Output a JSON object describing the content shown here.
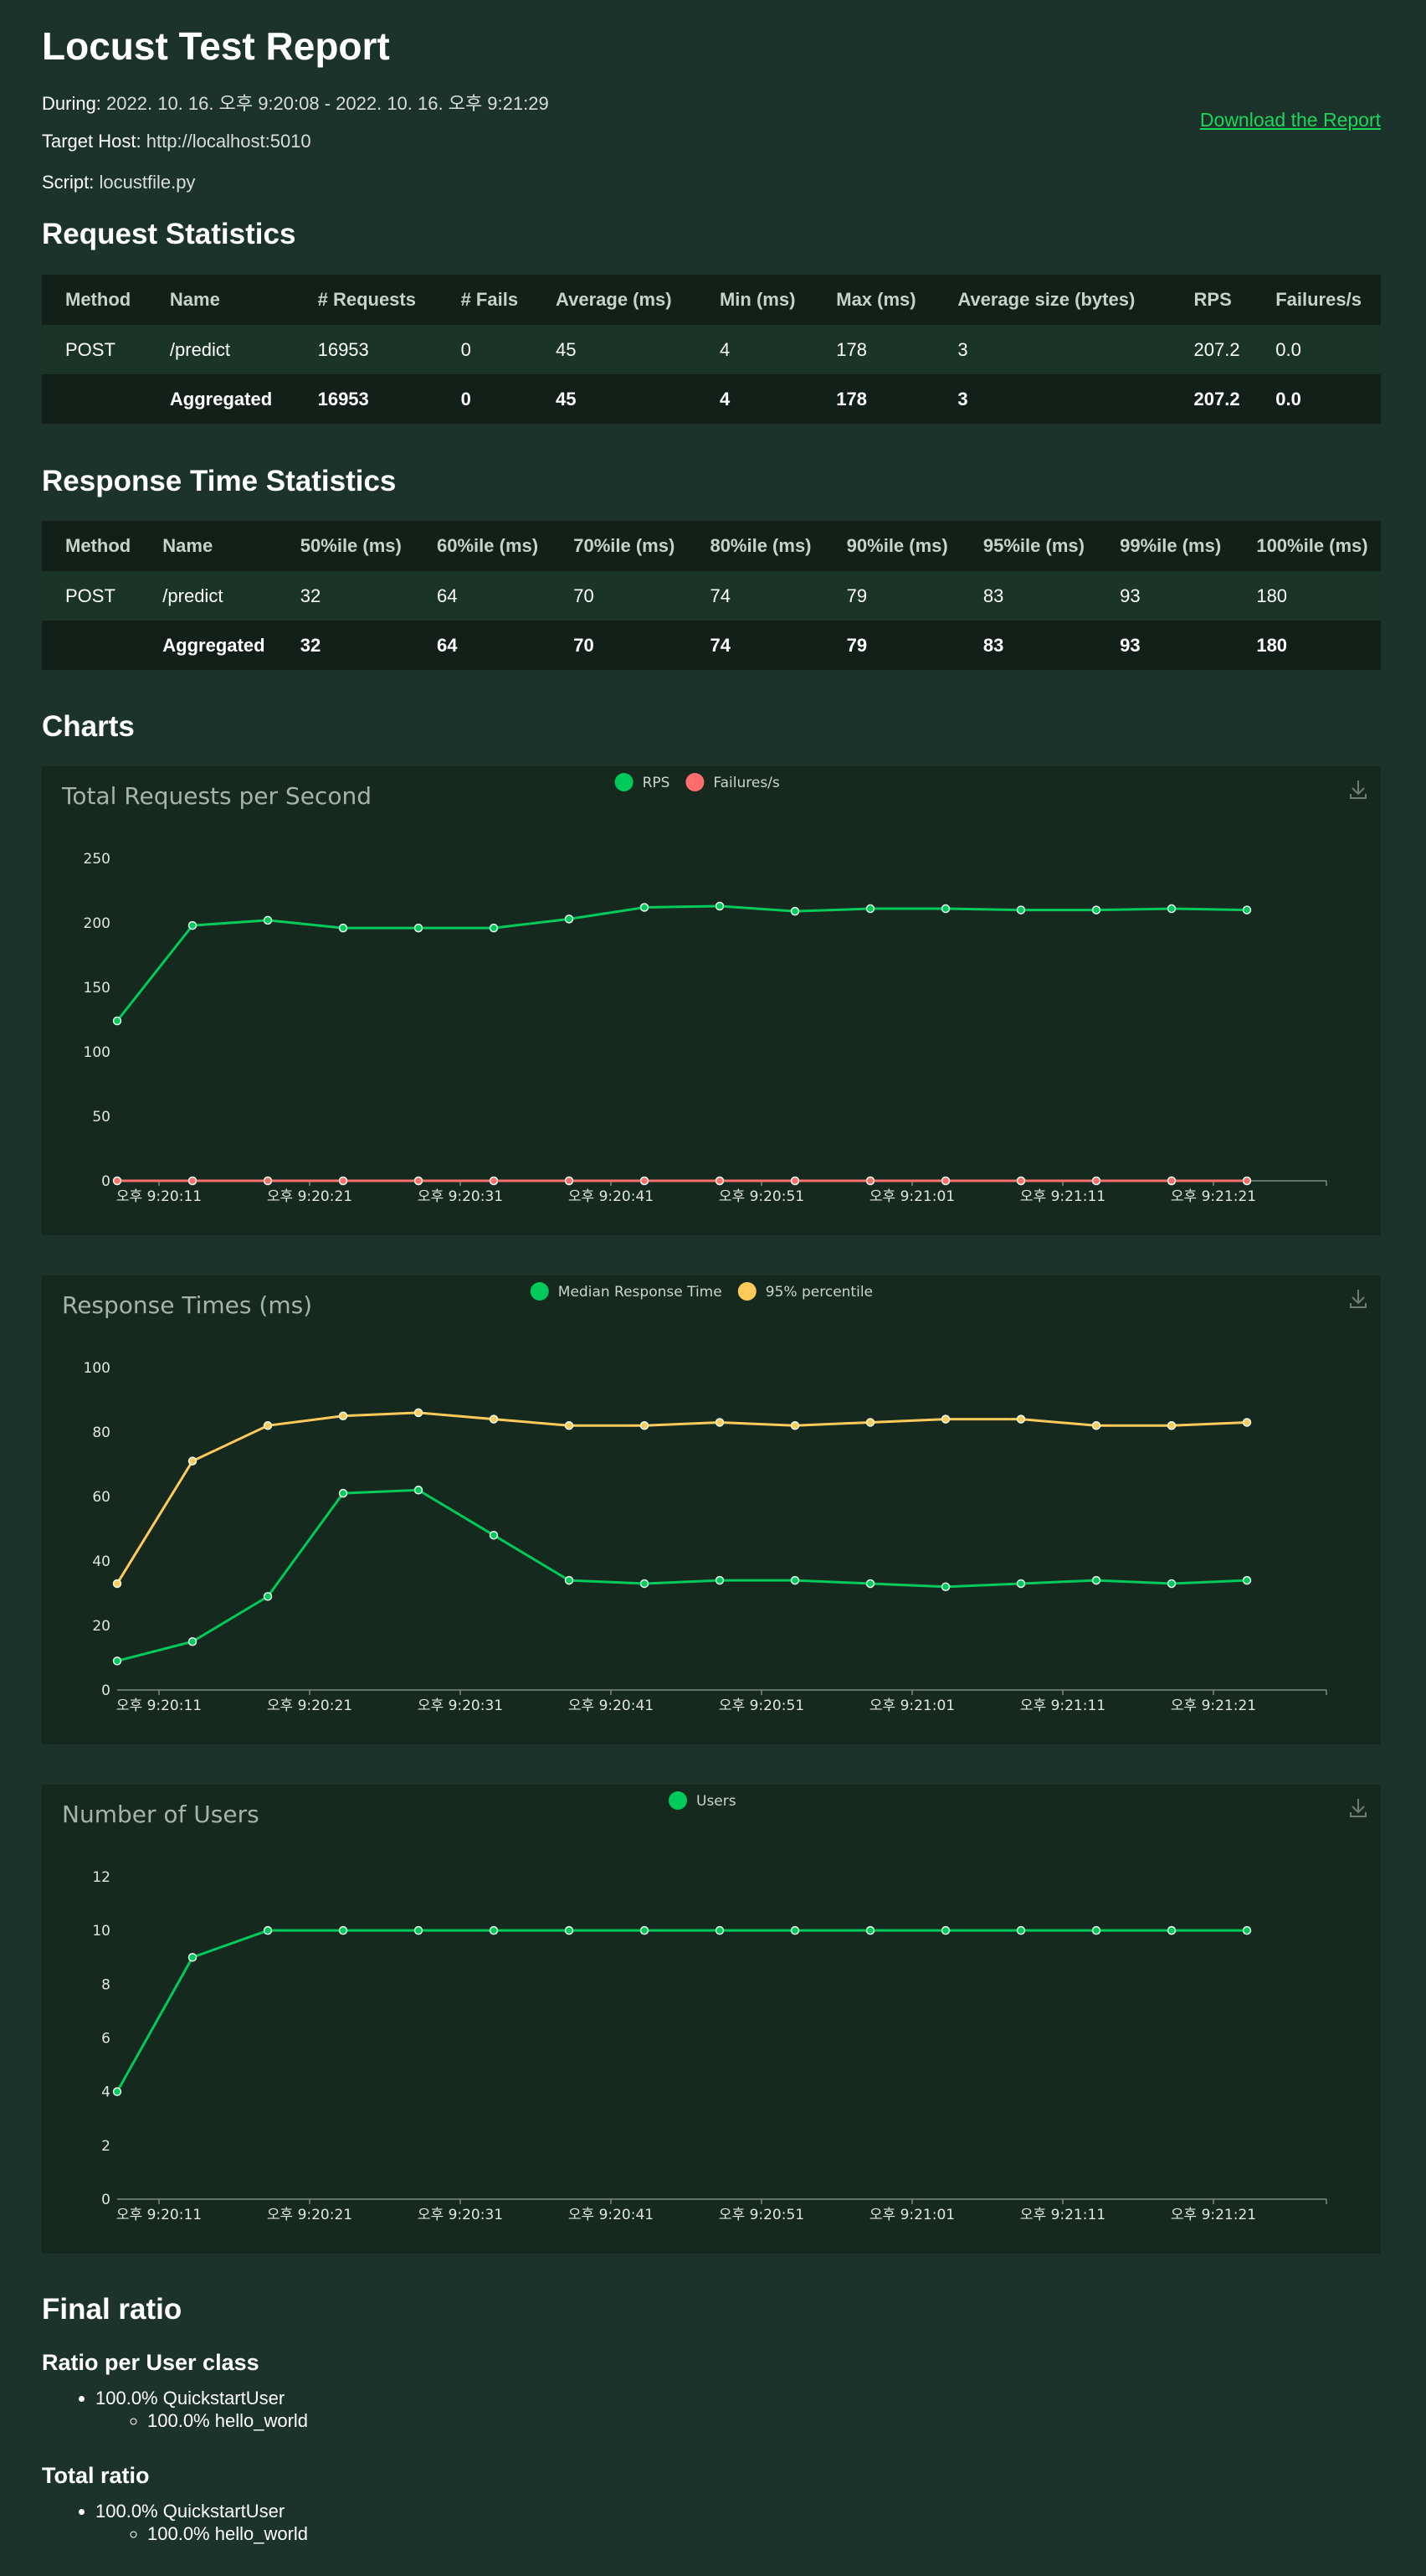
{
  "title": "Locust Test Report",
  "during": {
    "label": "During:",
    "value": "2022. 10. 16. 오후 9:20:08 - 2022. 10. 16. 오후 9:21:29"
  },
  "target_host": {
    "label": "Target Host:",
    "value": "http://localhost:5010"
  },
  "script": {
    "label": "Script:",
    "value": "locustfile.py"
  },
  "download_label": "Download the Report",
  "request_stats": {
    "heading": "Request Statistics",
    "columns": [
      "Method",
      "Name",
      "# Requests",
      "# Fails",
      "Average (ms)",
      "Min (ms)",
      "Max (ms)",
      "Average size (bytes)",
      "RPS",
      "Failures/s"
    ],
    "rows": [
      [
        "POST",
        "/predict",
        "16953",
        "0",
        "45",
        "4",
        "178",
        "3",
        "207.2",
        "0.0"
      ]
    ],
    "aggregated": [
      "",
      "Aggregated",
      "16953",
      "0",
      "45",
      "4",
      "178",
      "3",
      "207.2",
      "0.0"
    ]
  },
  "response_stats": {
    "heading": "Response Time Statistics",
    "columns": [
      "Method",
      "Name",
      "50%ile (ms)",
      "60%ile (ms)",
      "70%ile (ms)",
      "80%ile (ms)",
      "90%ile (ms)",
      "95%ile (ms)",
      "99%ile (ms)",
      "100%ile (ms)"
    ],
    "rows": [
      [
        "POST",
        "/predict",
        "32",
        "64",
        "70",
        "74",
        "79",
        "83",
        "93",
        "180"
      ]
    ],
    "aggregated": [
      "",
      "Aggregated",
      "32",
      "64",
      "70",
      "74",
      "79",
      "83",
      "93",
      "180"
    ]
  },
  "charts_heading": "Charts",
  "colors": {
    "green": "#00ca5a",
    "red": "#ff6d6d",
    "yellow": "#ffca5a",
    "axis": "#7d8a84"
  },
  "chart_data": [
    {
      "type": "line",
      "title": "Total Requests per Second",
      "x_tick_labels": [
        "오후 9:20:11",
        "오후 9:20:21",
        "오후 9:20:31",
        "오후 9:20:41",
        "오후 9:20:51",
        "오후 9:21:01",
        "오후 9:21:11",
        "오후 9:21:21"
      ],
      "y_ticks": [
        0,
        50,
        100,
        150,
        200,
        250
      ],
      "ylim": [
        0,
        250
      ],
      "series": [
        {
          "name": "RPS",
          "color": "#00ca5a",
          "values": [
            124,
            198,
            202,
            196,
            196,
            196,
            203,
            212,
            213,
            209,
            211,
            211,
            210,
            210,
            211,
            210
          ]
        },
        {
          "name": "Failures/s",
          "color": "#ff6d6d",
          "values": [
            0,
            0,
            0,
            0,
            0,
            0,
            0,
            0,
            0,
            0,
            0,
            0,
            0,
            0,
            0,
            0
          ]
        }
      ],
      "legend": "top-center"
    },
    {
      "type": "line",
      "title": "Response Times (ms)",
      "x_tick_labels": [
        "오후 9:20:11",
        "오후 9:20:21",
        "오후 9:20:31",
        "오후 9:20:41",
        "오후 9:20:51",
        "오후 9:21:01",
        "오후 9:21:11",
        "오후 9:21:21"
      ],
      "y_ticks": [
        0,
        20,
        40,
        60,
        80,
        100
      ],
      "ylim": [
        0,
        100
      ],
      "series": [
        {
          "name": "Median Response Time",
          "color": "#00ca5a",
          "values": [
            9,
            15,
            29,
            61,
            62,
            48,
            34,
            33,
            34,
            34,
            33,
            32,
            33,
            34,
            33,
            34
          ]
        },
        {
          "name": "95% percentile",
          "color": "#ffca5a",
          "values": [
            33,
            71,
            82,
            85,
            86,
            84,
            82,
            82,
            83,
            82,
            83,
            84,
            84,
            82,
            82,
            83
          ]
        }
      ],
      "legend": "top-center"
    },
    {
      "type": "line",
      "title": "Number of Users",
      "x_tick_labels": [
        "오후 9:20:11",
        "오후 9:20:21",
        "오후 9:20:31",
        "오후 9:20:41",
        "오후 9:20:51",
        "오후 9:21:01",
        "오후 9:21:11",
        "오후 9:21:21"
      ],
      "y_ticks": [
        0,
        2,
        4,
        6,
        8,
        10,
        12
      ],
      "ylim": [
        0,
        12
      ],
      "series": [
        {
          "name": "Users",
          "color": "#00ca5a",
          "values": [
            4,
            9,
            10,
            10,
            10,
            10,
            10,
            10,
            10,
            10,
            10,
            10,
            10,
            10,
            10,
            10
          ]
        }
      ],
      "legend": "top-center"
    }
  ],
  "final_ratio": {
    "heading": "Final ratio",
    "per_class_heading": "Ratio per User class",
    "per_class": {
      "user": "100.0% QuickstartUser",
      "task": "100.0% hello_world"
    },
    "total_heading": "Total ratio",
    "total": {
      "user": "100.0% QuickstartUser",
      "task": "100.0% hello_world"
    }
  }
}
